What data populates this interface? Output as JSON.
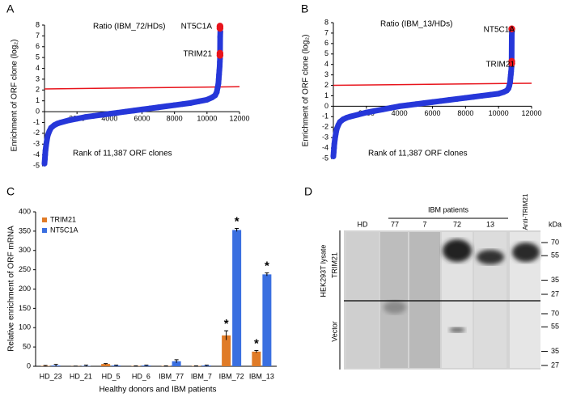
{
  "chart_data": [
    {
      "type": "scatter",
      "panel": "A",
      "annotations": [
        "Ratio (IBM_72/HDs)",
        "NT5C1A",
        "TRIM21"
      ],
      "xlabel": "Rank of 11,387 ORF clones",
      "ylabel": "Enrichment of ORF clone (log₂)",
      "xlim": [
        0,
        12000
      ],
      "ylim": [
        -5,
        8
      ],
      "xticks": [
        2000,
        4000,
        6000,
        8000,
        10000,
        12000
      ],
      "yticks": [
        -5,
        -4,
        -3,
        -2,
        -1,
        0,
        1,
        2,
        3,
        4,
        5,
        6,
        7,
        8
      ],
      "series": [
        {
          "color": "#2637d9",
          "x": [
            0,
            20,
            40,
            60,
            100,
            150,
            200,
            300,
            400,
            600,
            800,
            1000,
            1500,
            2000,
            2500,
            3000,
            3500,
            4000,
            4500,
            5000,
            5500,
            6000,
            6500,
            7000,
            7500,
            8000,
            8500,
            9000,
            9500,
            10000,
            10300,
            10500,
            10600,
            10650,
            10700,
            10720,
            10740,
            10760,
            10780,
            10790,
            10800,
            10810,
            10820
          ],
          "values": [
            -4.8,
            -4.4,
            -4.0,
            -3.6,
            -3.1,
            -2.6,
            -2.2,
            -1.8,
            -1.5,
            -1.25,
            -1.1,
            -1.0,
            -0.8,
            -0.65,
            -0.5,
            -0.4,
            -0.3,
            -0.2,
            -0.1,
            0,
            0.1,
            0.2,
            0.3,
            0.4,
            0.5,
            0.6,
            0.7,
            0.8,
            0.95,
            1.1,
            1.3,
            1.5,
            1.8,
            2.2,
            2.6,
            3.0,
            3.4,
            3.8,
            4.2,
            4.6,
            4.9,
            6.9,
            7.4
          ]
        },
        {
          "color": "#e8141c",
          "x": [
            10800,
            10800,
            10800,
            10800
          ],
          "values": [
            7.9,
            7.7,
            5.4,
            5.2
          ]
        }
      ],
      "threshold": {
        "color": "#e8141c",
        "x": [
          0,
          12000
        ],
        "values": [
          2.1,
          2.3
        ]
      }
    },
    {
      "type": "scatter",
      "panel": "B",
      "annotations": [
        "Ratio (IBM_13/HDs)",
        "NT5C1A",
        "TRIM21"
      ],
      "xlabel": "Rank of 11,387 ORF clones",
      "ylabel": "Enrichment of ORF clone (log₂)",
      "xlim": [
        0,
        12000
      ],
      "ylim": [
        -5,
        8
      ],
      "xticks": [
        2000,
        4000,
        6000,
        8000,
        10000,
        12000
      ],
      "yticks": [
        -5,
        -4,
        -3,
        -2,
        -1,
        0,
        1,
        2,
        3,
        4,
        5,
        6,
        7,
        8
      ],
      "series": [
        {
          "color": "#2637d9",
          "x": [
            0,
            20,
            40,
            60,
            100,
            150,
            200,
            300,
            400,
            600,
            800,
            1000,
            1500,
            2000,
            2500,
            3000,
            3500,
            4000,
            4500,
            5000,
            5500,
            6000,
            6500,
            7000,
            7500,
            8000,
            8500,
            9000,
            9500,
            10000,
            10300,
            10500,
            10600,
            10650,
            10700,
            10720,
            10740,
            10760,
            10780,
            10790,
            10800,
            10810
          ],
          "values": [
            -4.8,
            -4.4,
            -4.0,
            -3.6,
            -3.1,
            -2.6,
            -2.2,
            -1.8,
            -1.5,
            -1.25,
            -1.1,
            -1.0,
            -0.8,
            -0.6,
            -0.45,
            -0.3,
            -0.15,
            0,
            0.1,
            0.2,
            0.3,
            0.4,
            0.5,
            0.6,
            0.7,
            0.8,
            0.9,
            1.0,
            1.1,
            1.2,
            1.35,
            1.5,
            1.7,
            1.95,
            2.3,
            2.7,
            3.0,
            3.3,
            3.7,
            4.0,
            6.7,
            7.2
          ]
        },
        {
          "color": "#e8141c",
          "x": [
            10800,
            10800,
            10800
          ],
          "values": [
            7.4,
            4.3,
            4.1
          ]
        }
      ],
      "threshold": {
        "color": "#e8141c",
        "x": [
          0,
          12000
        ],
        "values": [
          2.0,
          2.2
        ]
      }
    },
    {
      "type": "bar",
      "panel": "C",
      "xlabel": "Healthy donors and IBM patients",
      "ylabel": "Relative enrichment of ORF mRNA",
      "categories": [
        "HD_23",
        "HD_21",
        "HD_5",
        "HD_6",
        "IBM_77",
        "IBM_7",
        "IBM_72",
        "IBM_13"
      ],
      "ylim": [
        0,
        400
      ],
      "yticks": [
        0,
        50,
        100,
        150,
        200,
        250,
        300,
        350,
        400
      ],
      "legend": "upper-left",
      "significance_label": "*",
      "series": [
        {
          "name": "TRIM21",
          "color": "#e07b27",
          "values": [
            1,
            0.5,
            6,
            1,
            1,
            1,
            80,
            38
          ],
          "errors": [
            1,
            0,
            1,
            0,
            0,
            0,
            12,
            3
          ],
          "significant": [
            false,
            false,
            false,
            false,
            false,
            false,
            true,
            true
          ]
        },
        {
          "name": "NT5C1A",
          "color": "#3a6fe0",
          "values": [
            2,
            1,
            2,
            2,
            13,
            2,
            353,
            238
          ],
          "errors": [
            3,
            2,
            1,
            1,
            4,
            1,
            4,
            4
          ],
          "significant": [
            false,
            false,
            false,
            false,
            false,
            false,
            true,
            true
          ]
        }
      ]
    }
  ],
  "blot": {
    "panel": "D",
    "group_label": "IBM patients",
    "lanes": [
      "HD",
      "77",
      "7",
      "72",
      "13",
      "Anti-TRIM21"
    ],
    "unit": "kDa",
    "side_label": "HEK293T lysate",
    "rows": [
      {
        "label": "TRIM21",
        "markers": [
          70,
          55,
          35,
          27
        ]
      },
      {
        "label": "Vector",
        "markers": [
          70,
          55,
          35,
          27
        ]
      }
    ]
  }
}
